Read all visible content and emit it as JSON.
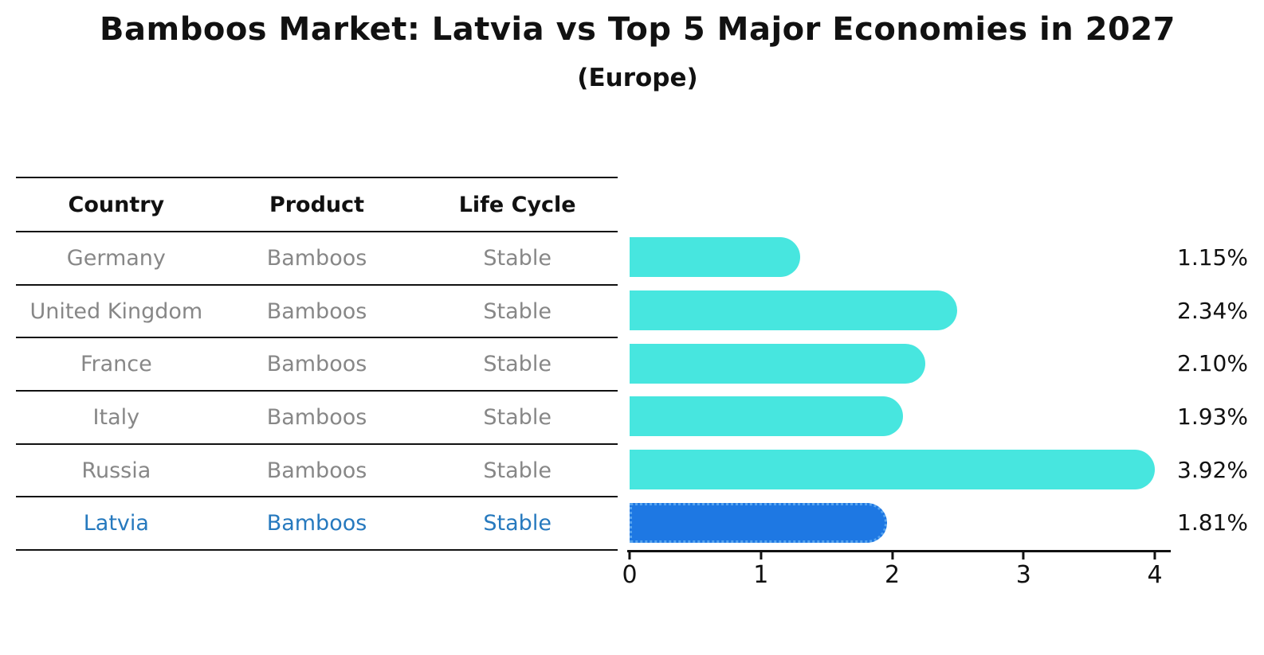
{
  "page": {
    "title": "Bamboos Market: Latvia vs Top 5 Major Economies in 2027",
    "subtitle": "(Europe)"
  },
  "table": {
    "headers": [
      "Country",
      "Product",
      "Life Cycle"
    ],
    "rows": [
      {
        "country": "Germany",
        "product": "Bamboos",
        "life_cycle": "Stable",
        "highlight": false
      },
      {
        "country": "United Kingdom",
        "product": "Bamboos",
        "life_cycle": "Stable",
        "highlight": false
      },
      {
        "country": "France",
        "product": "Bamboos",
        "life_cycle": "Stable",
        "highlight": false
      },
      {
        "country": "Italy",
        "product": "Bamboos",
        "life_cycle": "Stable",
        "highlight": false
      },
      {
        "country": "Russia",
        "product": "Bamboos",
        "life_cycle": "Stable",
        "highlight": false
      },
      {
        "country": "Latvia",
        "product": "Bamboos",
        "life_cycle": "Stable",
        "highlight": true
      }
    ]
  },
  "chart_data": {
    "type": "bar",
    "orientation": "horizontal",
    "title": "Bamboos Market: Latvia vs Top 5 Major Economies in 2027",
    "subtitle": "(Europe)",
    "categories": [
      "Germany",
      "United Kingdom",
      "France",
      "Italy",
      "Russia",
      "Latvia"
    ],
    "values": [
      1.15,
      2.34,
      2.1,
      1.93,
      3.92,
      1.81
    ],
    "value_labels": [
      "1.15%",
      "2.34%",
      "2.10%",
      "1.93%",
      "3.92%",
      "1.81%"
    ],
    "highlight_index": 5,
    "x_ticks": [
      0,
      1,
      2,
      3,
      4
    ],
    "xlim": [
      0,
      4
    ],
    "grid": false,
    "legend": "none",
    "colors": {
      "bar": "#47E6DF",
      "highlight_bar": "#1E78E3",
      "highlight_border": "#57A4EF",
      "highlight_text": "#2679BE",
      "row_text": "#878787",
      "header_text": "#111111",
      "axis": "#111111"
    }
  }
}
